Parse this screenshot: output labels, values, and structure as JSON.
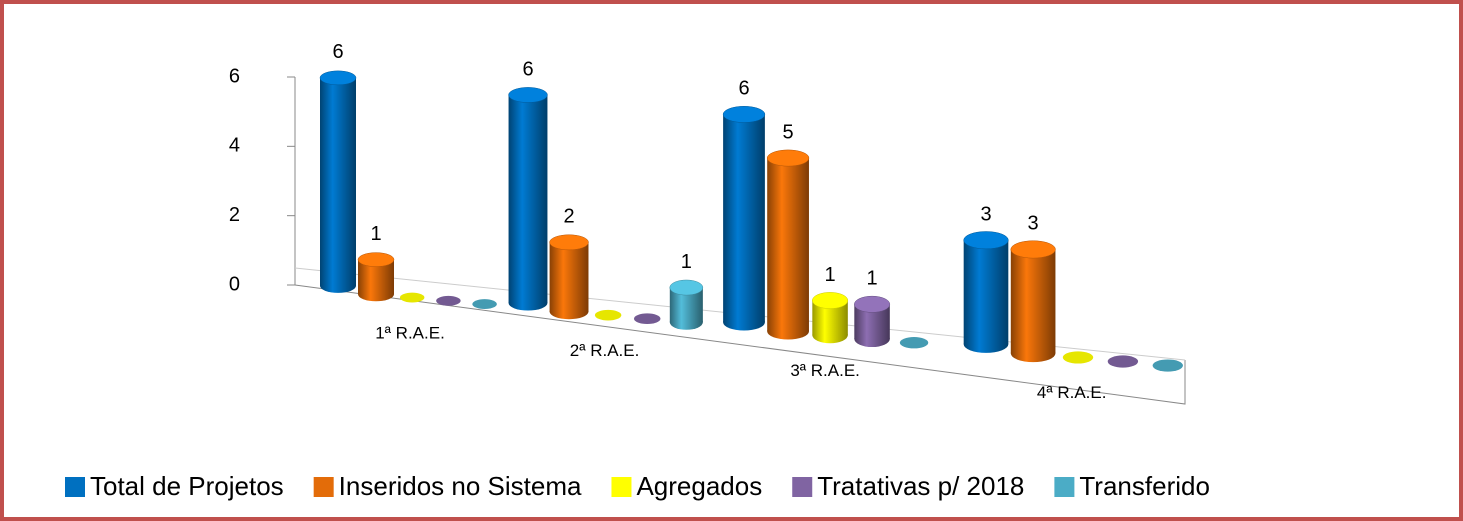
{
  "chart_data": {
    "type": "bar3d",
    "categories": [
      "1ª R.A.E.",
      "2ª R.A.E.",
      "3ª R.A.E.",
      "4ª R.A.E."
    ],
    "series": [
      {
        "name": "Total de Projetos",
        "color": "#0070c0",
        "values": [
          6,
          6,
          6,
          3
        ]
      },
      {
        "name": "Inseridos no Sistema",
        "color": "#e36c09",
        "values": [
          1,
          2,
          5,
          3
        ]
      },
      {
        "name": "Agregados",
        "color": "#ffff00",
        "values": [
          0,
          0,
          1,
          0
        ]
      },
      {
        "name": "Tratativas p/ 2018",
        "color": "#8064a2",
        "values": [
          0,
          0,
          1,
          0
        ]
      },
      {
        "name": "Transferido",
        "color": "#4bacc6",
        "values": [
          0,
          1,
          0,
          0
        ]
      }
    ],
    "ylim": [
      0,
      6
    ],
    "yticks": [
      0,
      2,
      4,
      6
    ],
    "legend": "bottom"
  }
}
